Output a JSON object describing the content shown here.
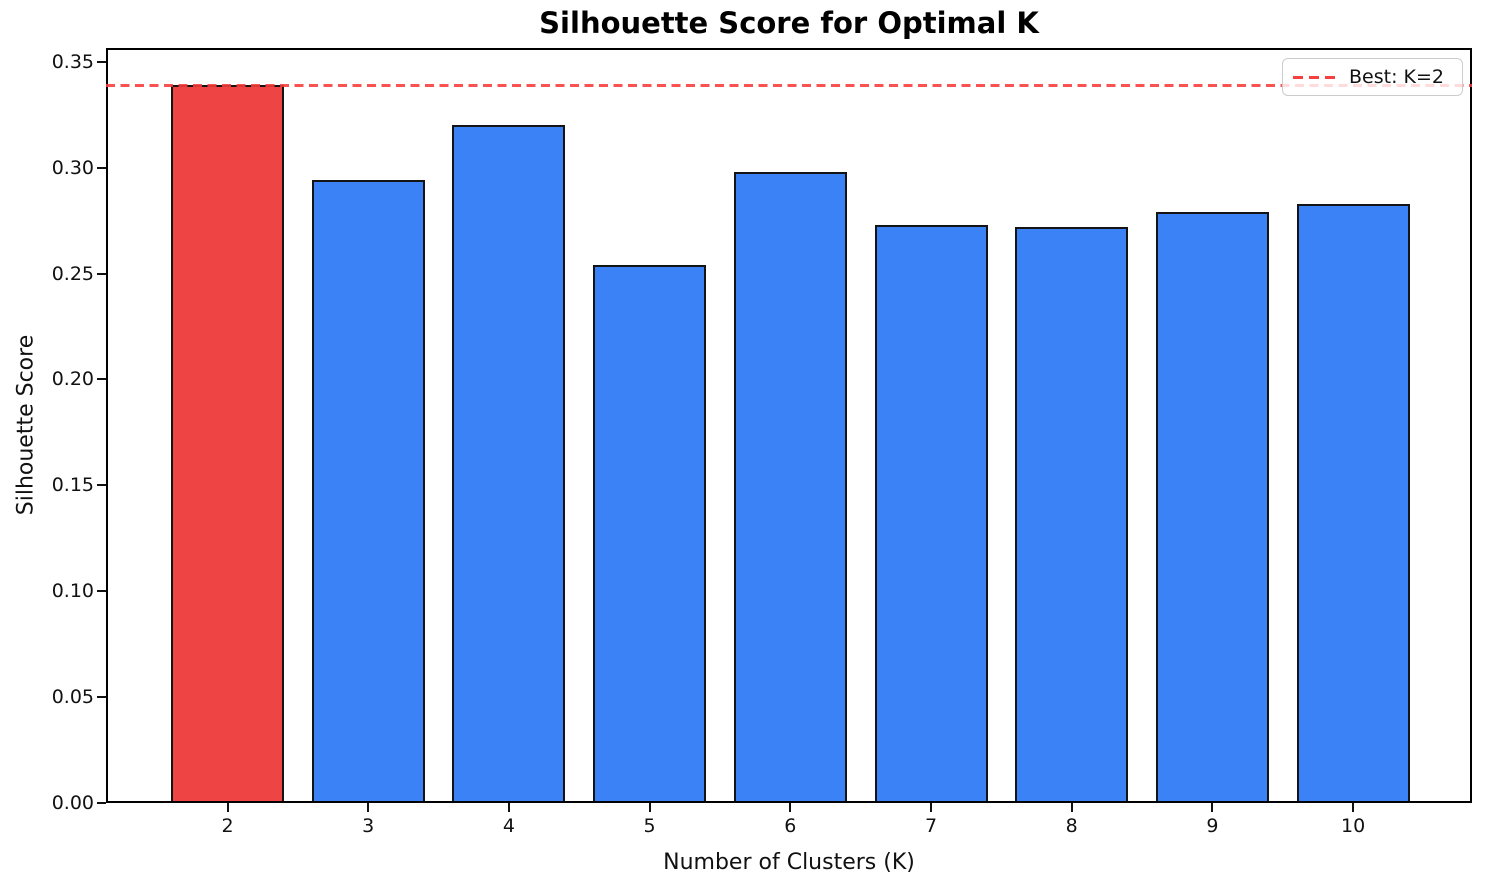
{
  "chart_data": {
    "type": "bar",
    "title": "Silhouette Score for Optimal K",
    "xlabel": "Number of Clusters (K)",
    "ylabel": "Silhouette Score",
    "categories": [
      "2",
      "3",
      "4",
      "5",
      "6",
      "7",
      "8",
      "9",
      "10"
    ],
    "values": [
      0.339,
      0.294,
      0.32,
      0.254,
      0.298,
      0.273,
      0.272,
      0.279,
      0.283
    ],
    "best_k": "2",
    "best_score": 0.339,
    "reference_line": {
      "value": 0.339,
      "style": "dashed",
      "label": "Best: K=2"
    },
    "legend": {
      "label": "Best: K=2",
      "position": "upper right"
    },
    "yticks": [
      "0.00",
      "0.05",
      "0.10",
      "0.15",
      "0.20",
      "0.25",
      "0.30",
      "0.35"
    ],
    "ylim": [
      0,
      0.3565
    ],
    "grid": false,
    "colors": {
      "highlight_bar": "#ee4444",
      "bar": "#3b82f6",
      "bar_edge": "#141414",
      "reference_line": "#f83a3a",
      "legend_border": "#cccccc"
    }
  }
}
